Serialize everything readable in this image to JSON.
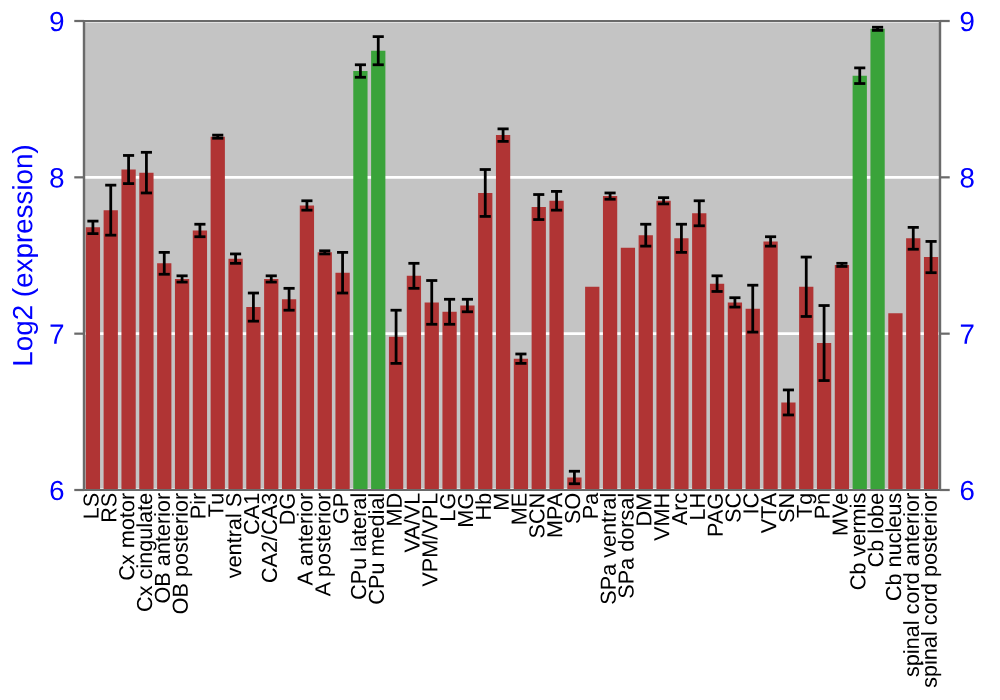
{
  "chart_data": {
    "type": "bar",
    "ylabel": "Log2 (expression)",
    "categories": [
      "LS",
      "RS",
      "Cx motor",
      "Cx cingulate",
      "OB anterior",
      "OB posterior",
      "Pir",
      "Tu",
      "ventral S",
      "CA1",
      "CA2/CA3",
      "DG",
      "A anterior",
      "A posterior",
      "GP",
      "CPu lateral",
      "CPu medial",
      "MD",
      "VA/VL",
      "VPM/VPL",
      "LG",
      "MG",
      "Hb",
      "M",
      "ME",
      "SCN",
      "MPA",
      "SO",
      "Pa",
      "SPa ventral",
      "SPa dorsal",
      "DM",
      "VMH",
      "Arc",
      "LH",
      "PAG",
      "SC",
      "IC",
      "VTA",
      "SN",
      "Tg",
      "Pn",
      "MVe",
      "Cb vermis",
      "Cb lobe",
      "Cb nucleus",
      "spinal cord anterior",
      "spinal cord posterior"
    ],
    "values": [
      7.68,
      7.79,
      8.05,
      8.03,
      7.45,
      7.35,
      7.66,
      8.26,
      7.48,
      7.17,
      7.35,
      7.22,
      7.82,
      7.52,
      7.39,
      8.68,
      8.81,
      6.98,
      7.37,
      7.2,
      7.14,
      7.18,
      7.9,
      8.27,
      6.84,
      7.81,
      7.85,
      6.08,
      7.3,
      7.88,
      7.55,
      7.63,
      7.85,
      7.61,
      7.77,
      7.32,
      7.2,
      7.16,
      7.59,
      6.56,
      7.3,
      6.94,
      7.44,
      8.65,
      8.95,
      7.13,
      7.61,
      7.49
    ],
    "errors": [
      0.04,
      0.16,
      0.09,
      0.13,
      0.07,
      0.02,
      0.04,
      0.01,
      0.03,
      0.09,
      0.02,
      0.07,
      0.03,
      0.01,
      0.13,
      0.04,
      0.09,
      0.17,
      0.08,
      0.14,
      0.08,
      0.04,
      0.15,
      0.04,
      0.03,
      0.08,
      0.06,
      0.04,
      null,
      0.02,
      null,
      0.07,
      0.02,
      0.09,
      0.08,
      0.05,
      0.03,
      0.15,
      0.03,
      0.08,
      0.19,
      0.24,
      0.01,
      0.05,
      0.01,
      null,
      0.07,
      0.1
    ],
    "colors": [
      "#b03434",
      "#b03434",
      "#b03434",
      "#b03434",
      "#b03434",
      "#b03434",
      "#b03434",
      "#b03434",
      "#b03434",
      "#b03434",
      "#b03434",
      "#b03434",
      "#b03434",
      "#b03434",
      "#b03434",
      "#3aa33a",
      "#3aa33a",
      "#b03434",
      "#b03434",
      "#b03434",
      "#b03434",
      "#b03434",
      "#b03434",
      "#b03434",
      "#b03434",
      "#b03434",
      "#b03434",
      "#b03434",
      "#b03434",
      "#b03434",
      "#b03434",
      "#b03434",
      "#b03434",
      "#b03434",
      "#b03434",
      "#b03434",
      "#b03434",
      "#b03434",
      "#b03434",
      "#b03434",
      "#b03434",
      "#b03434",
      "#b03434",
      "#3aa33a",
      "#3aa33a",
      "#b03434",
      "#b03434",
      "#b03434"
    ],
    "ylim": [
      6,
      9
    ],
    "yticks": [
      6,
      7,
      8,
      9
    ],
    "y2lim": [
      6,
      9
    ],
    "y2ticks": [
      6,
      7,
      8,
      9
    ],
    "grid": "y"
  }
}
